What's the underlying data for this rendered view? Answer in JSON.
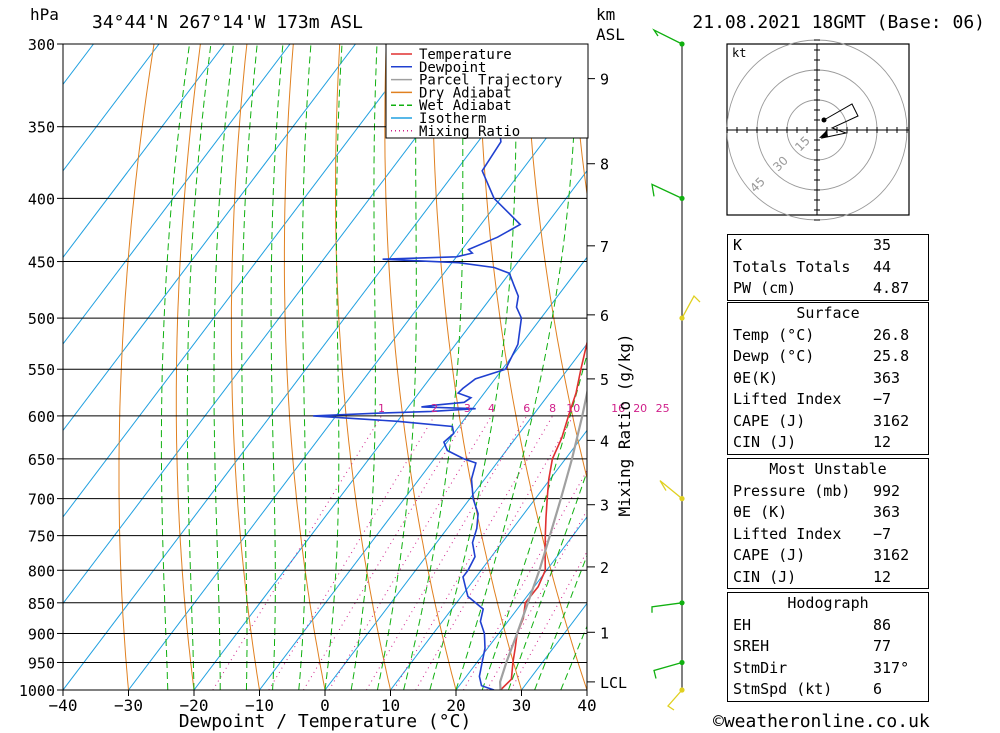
{
  "header": {
    "pressure_unit": "hPa",
    "location": "34°44'N  267°14'W  173m  ASL",
    "km_label_1": "km",
    "km_label_2": "ASL",
    "datetime": "21.08.2021  18GMT  (Base: 06)"
  },
  "footer": {
    "credit": "©weatheronline.co.uk"
  },
  "colors": {
    "temperature": "#e03030",
    "dewpoint": "#2040d0",
    "parcel": "#a0a0a0",
    "dry_adiabat": "#e08020",
    "wet_adiabat": "#10b010",
    "isotherm": "#20a0e0",
    "mixing_ratio": "#d0208a"
  },
  "chart_data": {
    "type": "line",
    "xlabel": "Dewpoint / Temperature (°C)",
    "ylabel": "hPa",
    "y2label": "Mixing Ratio (g/kg)",
    "xlim": [
      -40,
      40
    ],
    "ylim": [
      1000,
      300
    ],
    "x_ticks": [
      -40,
      -30,
      -20,
      -10,
      0,
      10,
      20,
      30,
      40
    ],
    "x_tick_labels": [
      "−40",
      "−30",
      "−20",
      "−10",
      "0",
      "10",
      "20",
      "30",
      "40"
    ],
    "pressure_levels": [
      300,
      350,
      400,
      450,
      500,
      550,
      600,
      650,
      700,
      750,
      800,
      850,
      900,
      950,
      1000
    ],
    "km_ticks": [
      {
        "label": "9",
        "p": 320
      },
      {
        "label": "8",
        "p": 375
      },
      {
        "label": "7",
        "p": 437
      },
      {
        "label": "6",
        "p": 497
      },
      {
        "label": "5",
        "p": 560
      },
      {
        "label": "4",
        "p": 628
      },
      {
        "label": "3",
        "p": 708
      },
      {
        "label": "2",
        "p": 795
      },
      {
        "label": "1",
        "p": 898
      },
      {
        "label": "LCL",
        "p": 985
      }
    ],
    "mixing_ratio_labels": [
      "1",
      "2",
      "3",
      "4",
      "6",
      "8",
      "10",
      "16",
      "20",
      "25"
    ],
    "legend": {
      "placement": "top-center",
      "entries": [
        "Temperature",
        "Dewpoint",
        "Parcel Trajectory",
        "Dry Adiabat",
        "Wet Adiabat",
        "Isotherm",
        "Mixing Ratio"
      ]
    },
    "series": [
      {
        "name": "Temperature",
        "points": [
          [
            1000,
            26.8
          ],
          [
            980,
            27.2
          ],
          [
            950,
            25.5
          ],
          [
            925,
            24.2
          ],
          [
            900,
            22.8
          ],
          [
            875,
            22.0
          ],
          [
            850,
            20.5
          ],
          [
            825,
            20.6
          ],
          [
            800,
            19.8
          ],
          [
            775,
            17.8
          ],
          [
            750,
            15.8
          ],
          [
            725,
            13.8
          ],
          [
            700,
            11.8
          ],
          [
            675,
            9.8
          ],
          [
            650,
            8.0
          ],
          [
            625,
            7.0
          ],
          [
            600,
            5.5
          ],
          [
            575,
            4.0
          ],
          [
            550,
            2.0
          ],
          [
            525,
            0.0
          ],
          [
            500,
            -2.0
          ],
          [
            475,
            -4.2
          ],
          [
            450,
            -6.8
          ],
          [
            425,
            -10.5
          ],
          [
            400,
            -13.5
          ],
          [
            380,
            -17.5
          ],
          [
            360,
            -22.0
          ]
        ]
      },
      {
        "name": "Dewpoint",
        "points": [
          [
            1000,
            25.8
          ],
          [
            992,
            23.4
          ],
          [
            975,
            22.0
          ],
          [
            950,
            20.8
          ],
          [
            925,
            19.6
          ],
          [
            900,
            17.8
          ],
          [
            880,
            15.8
          ],
          [
            860,
            14.8
          ],
          [
            840,
            11.0
          ],
          [
            825,
            9.5
          ],
          [
            810,
            8.0
          ],
          [
            800,
            8.0
          ],
          [
            780,
            7.5
          ],
          [
            760,
            5.5
          ],
          [
            740,
            4.5
          ],
          [
            720,
            3.0
          ],
          [
            700,
            0.5
          ],
          [
            675,
            -2.0
          ],
          [
            655,
            -3.2
          ],
          [
            650,
            -5.5
          ],
          [
            640,
            -9.0
          ],
          [
            630,
            -10.5
          ],
          [
            620,
            -10.0
          ],
          [
            612,
            -11.0
          ],
          [
            606,
            -20.0
          ],
          [
            600,
            -33.5
          ],
          [
            597,
            -24.0
          ],
          [
            595,
            -16.0
          ],
          [
            592,
            -9.5
          ],
          [
            590,
            -18.0
          ],
          [
            588,
            -16.0
          ],
          [
            585,
            -12.0
          ],
          [
            580,
            -11.5
          ],
          [
            575,
            -14.0
          ],
          [
            570,
            -13.8
          ],
          [
            560,
            -13.0
          ],
          [
            550,
            -9.5
          ],
          [
            525,
            -10.5
          ],
          [
            500,
            -13.0
          ],
          [
            490,
            -15.0
          ],
          [
            480,
            -16.0
          ],
          [
            470,
            -18.0
          ],
          [
            460,
            -20.0
          ],
          [
            455,
            -23.0
          ],
          [
            451,
            -29.0
          ],
          [
            448,
            -41.0
          ],
          [
            446,
            -30.0
          ],
          [
            443,
            -28.0
          ],
          [
            440,
            -29.0
          ],
          [
            430,
            -26.0
          ],
          [
            420,
            -24.0
          ],
          [
            400,
            -31.0
          ],
          [
            380,
            -36.0
          ],
          [
            360,
            -36.5
          ],
          [
            350,
            -38.5
          ],
          [
            340,
            -42.0
          ],
          [
            325,
            -45.5
          ],
          [
            310,
            -47.5
          ],
          [
            300,
            -50.0
          ]
        ]
      },
      {
        "name": "Parcel Trajectory",
        "points": [
          [
            1000,
            26.8
          ],
          [
            985,
            25.8
          ],
          [
            950,
            24.5
          ],
          [
            900,
            22.8
          ],
          [
            850,
            20.9
          ],
          [
            800,
            18.9
          ],
          [
            750,
            16.5
          ],
          [
            700,
            13.9
          ],
          [
            650,
            11.0
          ],
          [
            600,
            7.6
          ],
          [
            550,
            3.7
          ],
          [
            500,
            -0.8
          ],
          [
            450,
            -5.9
          ],
          [
            400,
            -11.8
          ],
          [
            360,
            -17.2
          ]
        ]
      }
    ],
    "surface_table": {
      "K": "35",
      "Totals Totals": "44",
      "PW (cm)": "4.87"
    },
    "surface": {
      "title": "Surface",
      "rows": [
        [
          "Temp (°C)",
          "26.8"
        ],
        [
          "Dewp (°C)",
          "25.8"
        ],
        [
          "θE(K)",
          "363"
        ],
        [
          "Lifted Index",
          "−7"
        ],
        [
          "CAPE (J)",
          "3162"
        ],
        [
          "CIN (J)",
          "12"
        ]
      ]
    },
    "most_unstable": {
      "title": "Most Unstable",
      "rows": [
        [
          "Pressure (mb)",
          "992"
        ],
        [
          "θE (K)",
          "363"
        ],
        [
          "Lifted Index",
          "−7"
        ],
        [
          "CAPE (J)",
          "3162"
        ],
        [
          "CIN (J)",
          "12"
        ]
      ]
    },
    "hodograph_table": {
      "title": "Hodograph",
      "rows": [
        [
          "EH",
          "86"
        ],
        [
          "SREH",
          "77"
        ],
        [
          "StmDir",
          "317°"
        ],
        [
          "StmSpd (kt)",
          "6"
        ]
      ]
    },
    "hodograph": {
      "unit_label": "kt",
      "ring_labels": [
        "15",
        "30",
        "45"
      ]
    }
  }
}
